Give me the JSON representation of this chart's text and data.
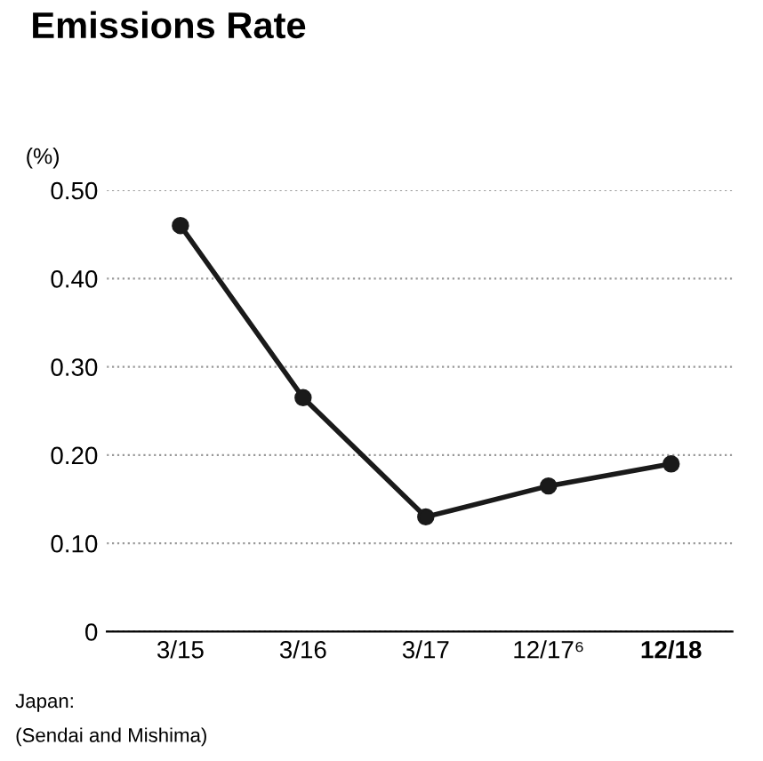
{
  "chart_data": {
    "type": "line",
    "title": "Emissions Rate",
    "ylabel": "(%)",
    "categories": [
      "3/15",
      "3/16",
      "3/17",
      "12/17⁶",
      "12/18"
    ],
    "series": [
      {
        "color": "#1a1a1a",
        "values": [
          0.46,
          0.265,
          0.13,
          0.165,
          0.19
        ]
      }
    ],
    "ylim": [
      0,
      0.5
    ],
    "yticks": [
      {
        "value": 0,
        "label": "0"
      },
      {
        "value": 0.1,
        "label": "0.10"
      },
      {
        "value": 0.2,
        "label": "0.20"
      },
      {
        "value": 0.3,
        "label": "0.30"
      },
      {
        "value": 0.4,
        "label": "0.40"
      },
      {
        "value": 0.5,
        "label": "0.50"
      }
    ],
    "grid": "y",
    "marker": "circle",
    "line_style": "solid",
    "annotations": [
      "Japan:",
      "(Sendai and Mishima)"
    ]
  }
}
